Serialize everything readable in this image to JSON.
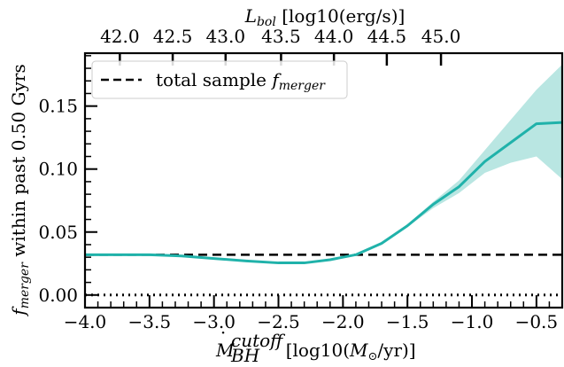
{
  "chart_data": {
    "type": "line",
    "xlim": [
      -4.0,
      -0.3
    ],
    "ylim": [
      -0.01,
      0.192
    ],
    "top_xlabel": {
      "main": "L",
      "sub": "bol",
      "rest": " [log10(erg/s)]"
    },
    "xlabel": {
      "main": "M",
      "dot": "·",
      "sup": "cutoff",
      "sub": "BH",
      "rest_1": "  [log10(",
      "rest_M": "M",
      "rest_sun": "⊙",
      "rest_2": "/yr)]"
    },
    "ylabel": {
      "main": "f",
      "sub": "merger",
      "rest": " within past 0.50 Gyrs"
    },
    "legend": {
      "label": "total sample ",
      "label_f": "f",
      "label_sub": "merger",
      "location": "top-left"
    },
    "x_ticks": [
      {
        "value": -4.0,
        "label": "−4.0"
      },
      {
        "value": -3.5,
        "label": "−3.5"
      },
      {
        "value": -3.0,
        "label": "−3.0"
      },
      {
        "value": -2.5,
        "label": "−2.5"
      },
      {
        "value": -2.0,
        "label": "−2.0"
      },
      {
        "value": -1.5,
        "label": "−1.5"
      },
      {
        "value": -1.0,
        "label": "−1.0"
      },
      {
        "value": -0.5,
        "label": "−0.5"
      }
    ],
    "y_ticks": [
      {
        "value": 0.0,
        "label": "0.00"
      },
      {
        "value": 0.05,
        "label": "0.05"
      },
      {
        "value": 0.1,
        "label": "0.10"
      },
      {
        "value": 0.15,
        "label": "0.15"
      }
    ],
    "top_ticks": [
      {
        "x": -3.73,
        "label": "42.0"
      },
      {
        "x": -3.32,
        "label": "42.5"
      },
      {
        "x": -2.91,
        "label": "43.0"
      },
      {
        "x": -2.48,
        "label": "43.5"
      },
      {
        "x": -2.07,
        "label": "44.0"
      },
      {
        "x": -1.66,
        "label": "44.5"
      },
      {
        "x": -1.24,
        "label": "45.0"
      }
    ],
    "series": [
      {
        "type": "line",
        "color": "#20b2aa",
        "band_color": "#b9e6e2",
        "x": [
          -4.0,
          -3.75,
          -3.5,
          -3.25,
          -3.0,
          -2.75,
          -2.5,
          -2.3,
          -2.1,
          -1.9,
          -1.7,
          -1.5,
          -1.3,
          -1.1,
          -0.9,
          -0.7,
          -0.5,
          -0.3
        ],
        "y": [
          0.032,
          0.032,
          0.032,
          0.031,
          0.029,
          0.027,
          0.0255,
          0.0255,
          0.028,
          0.032,
          0.041,
          0.055,
          0.072,
          0.086,
          0.106,
          0.121,
          0.136,
          0.137
        ],
        "lower": [
          0.0315,
          0.0315,
          0.0315,
          0.0305,
          0.0285,
          0.0265,
          0.025,
          0.025,
          0.0275,
          0.0315,
          0.04,
          0.054,
          0.069,
          0.081,
          0.097,
          0.105,
          0.11,
          0.092
        ],
        "upper": [
          0.0325,
          0.0325,
          0.0325,
          0.0315,
          0.0295,
          0.0275,
          0.026,
          0.026,
          0.0285,
          0.0325,
          0.042,
          0.056,
          0.074,
          0.091,
          0.115,
          0.139,
          0.163,
          0.183
        ]
      },
      {
        "type": "hline",
        "name": "total sample",
        "y": 0.032,
        "color": "#000000",
        "style": "dashed"
      },
      {
        "type": "hline",
        "y": 0.0,
        "color": "#000000",
        "style": "dotted"
      }
    ]
  }
}
